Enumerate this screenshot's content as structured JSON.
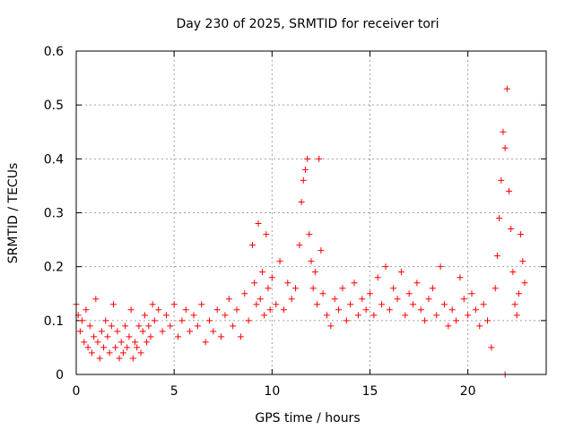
{
  "chart_data": {
    "type": "scatter",
    "title": "Day 230 of 2025, SRMTID for receiver tori",
    "xlabel": "GPS time / hours",
    "ylabel": "SRMTID / TECUs",
    "xlim": [
      0,
      24.0
    ],
    "ylim": [
      0,
      0.6
    ],
    "x_ticks": [
      0,
      5,
      10,
      15,
      20
    ],
    "x_tick_labels": [
      "0",
      "5",
      "10",
      "15",
      "20"
    ],
    "y_ticks": [
      0,
      0.1,
      0.2,
      0.3,
      0.4,
      0.5,
      0.6
    ],
    "y_tick_labels": [
      "0",
      "0.1",
      "0.2",
      "0.3",
      "0.4",
      "0.5",
      "0.6"
    ],
    "grid": true,
    "marker": "plus",
    "series_color": "#ff0000",
    "series": [
      {
        "name": "SRMTID",
        "points": [
          [
            0.0,
            0.13
          ],
          [
            0.1,
            0.11
          ],
          [
            0.2,
            0.08
          ],
          [
            0.3,
            0.1
          ],
          [
            0.4,
            0.06
          ],
          [
            0.5,
            0.12
          ],
          [
            0.6,
            0.05
          ],
          [
            0.7,
            0.09
          ],
          [
            0.8,
            0.04
          ],
          [
            0.9,
            0.07
          ],
          [
            1.0,
            0.14
          ],
          [
            1.1,
            0.06
          ],
          [
            1.2,
            0.03
          ],
          [
            1.3,
            0.08
          ],
          [
            1.4,
            0.05
          ],
          [
            1.5,
            0.1
          ],
          [
            1.6,
            0.07
          ],
          [
            1.7,
            0.04
          ],
          [
            1.8,
            0.09
          ],
          [
            1.9,
            0.13
          ],
          [
            2.0,
            0.05
          ],
          [
            2.1,
            0.08
          ],
          [
            2.2,
            0.03
          ],
          [
            2.3,
            0.06
          ],
          [
            2.4,
            0.04
          ],
          [
            2.5,
            0.09
          ],
          [
            2.6,
            0.05
          ],
          [
            2.7,
            0.07
          ],
          [
            2.8,
            0.12
          ],
          [
            2.9,
            0.03
          ],
          [
            3.0,
            0.06
          ],
          [
            3.1,
            0.05
          ],
          [
            3.2,
            0.09
          ],
          [
            3.3,
            0.04
          ],
          [
            3.4,
            0.08
          ],
          [
            3.5,
            0.11
          ],
          [
            3.6,
            0.06
          ],
          [
            3.7,
            0.09
          ],
          [
            3.8,
            0.07
          ],
          [
            3.9,
            0.13
          ],
          [
            4.0,
            0.1
          ],
          [
            4.2,
            0.12
          ],
          [
            4.4,
            0.08
          ],
          [
            4.6,
            0.11
          ],
          [
            4.8,
            0.09
          ],
          [
            5.0,
            0.13
          ],
          [
            5.2,
            0.07
          ],
          [
            5.4,
            0.1
          ],
          [
            5.6,
            0.12
          ],
          [
            5.8,
            0.08
          ],
          [
            6.0,
            0.11
          ],
          [
            6.2,
            0.09
          ],
          [
            6.4,
            0.13
          ],
          [
            6.6,
            0.06
          ],
          [
            6.8,
            0.1
          ],
          [
            7.0,
            0.08
          ],
          [
            7.2,
            0.12
          ],
          [
            7.4,
            0.07
          ],
          [
            7.6,
            0.11
          ],
          [
            7.8,
            0.14
          ],
          [
            8.0,
            0.09
          ],
          [
            8.2,
            0.12
          ],
          [
            8.4,
            0.07
          ],
          [
            8.6,
            0.15
          ],
          [
            8.8,
            0.1
          ],
          [
            9.0,
            0.24
          ],
          [
            9.1,
            0.17
          ],
          [
            9.2,
            0.13
          ],
          [
            9.3,
            0.28
          ],
          [
            9.4,
            0.14
          ],
          [
            9.5,
            0.19
          ],
          [
            9.6,
            0.11
          ],
          [
            9.7,
            0.26
          ],
          [
            9.8,
            0.16
          ],
          [
            9.9,
            0.12
          ],
          [
            10.0,
            0.18
          ],
          [
            10.2,
            0.13
          ],
          [
            10.4,
            0.21
          ],
          [
            10.6,
            0.12
          ],
          [
            10.8,
            0.17
          ],
          [
            11.0,
            0.14
          ],
          [
            11.2,
            0.16
          ],
          [
            11.4,
            0.24
          ],
          [
            11.5,
            0.32
          ],
          [
            11.6,
            0.36
          ],
          [
            11.7,
            0.38
          ],
          [
            11.8,
            0.4
          ],
          [
            11.9,
            0.26
          ],
          [
            12.0,
            0.21
          ],
          [
            12.1,
            0.16
          ],
          [
            12.2,
            0.19
          ],
          [
            12.3,
            0.13
          ],
          [
            12.4,
            0.4
          ],
          [
            12.5,
            0.23
          ],
          [
            12.6,
            0.15
          ],
          [
            12.8,
            0.11
          ],
          [
            13.0,
            0.09
          ],
          [
            13.2,
            0.14
          ],
          [
            13.4,
            0.12
          ],
          [
            13.6,
            0.16
          ],
          [
            13.8,
            0.1
          ],
          [
            14.0,
            0.13
          ],
          [
            14.2,
            0.17
          ],
          [
            14.4,
            0.11
          ],
          [
            14.6,
            0.14
          ],
          [
            14.8,
            0.12
          ],
          [
            15.0,
            0.15
          ],
          [
            15.2,
            0.11
          ],
          [
            15.4,
            0.18
          ],
          [
            15.6,
            0.13
          ],
          [
            15.8,
            0.2
          ],
          [
            16.0,
            0.12
          ],
          [
            16.2,
            0.16
          ],
          [
            16.4,
            0.14
          ],
          [
            16.6,
            0.19
          ],
          [
            16.8,
            0.11
          ],
          [
            17.0,
            0.15
          ],
          [
            17.2,
            0.13
          ],
          [
            17.4,
            0.17
          ],
          [
            17.6,
            0.12
          ],
          [
            17.8,
            0.1
          ],
          [
            18.0,
            0.14
          ],
          [
            18.2,
            0.16
          ],
          [
            18.4,
            0.11
          ],
          [
            18.6,
            0.2
          ],
          [
            18.8,
            0.13
          ],
          [
            19.0,
            0.09
          ],
          [
            19.2,
            0.12
          ],
          [
            19.4,
            0.1
          ],
          [
            19.6,
            0.18
          ],
          [
            19.8,
            0.14
          ],
          [
            20.0,
            0.11
          ],
          [
            20.2,
            0.15
          ],
          [
            20.4,
            0.12
          ],
          [
            20.6,
            0.09
          ],
          [
            20.8,
            0.13
          ],
          [
            21.0,
            0.1
          ],
          [
            21.2,
            0.05
          ],
          [
            21.4,
            0.16
          ],
          [
            21.5,
            0.22
          ],
          [
            21.6,
            0.29
          ],
          [
            21.7,
            0.36
          ],
          [
            21.8,
            0.45
          ],
          [
            21.9,
            0.42
          ],
          [
            22.0,
            0.53
          ],
          [
            22.1,
            0.34
          ],
          [
            22.2,
            0.27
          ],
          [
            22.3,
            0.19
          ],
          [
            22.4,
            0.13
          ],
          [
            22.5,
            0.11
          ],
          [
            22.6,
            0.15
          ],
          [
            22.7,
            0.26
          ],
          [
            22.8,
            0.21
          ],
          [
            22.9,
            0.17
          ],
          [
            21.9,
            0.0
          ]
        ]
      }
    ]
  }
}
